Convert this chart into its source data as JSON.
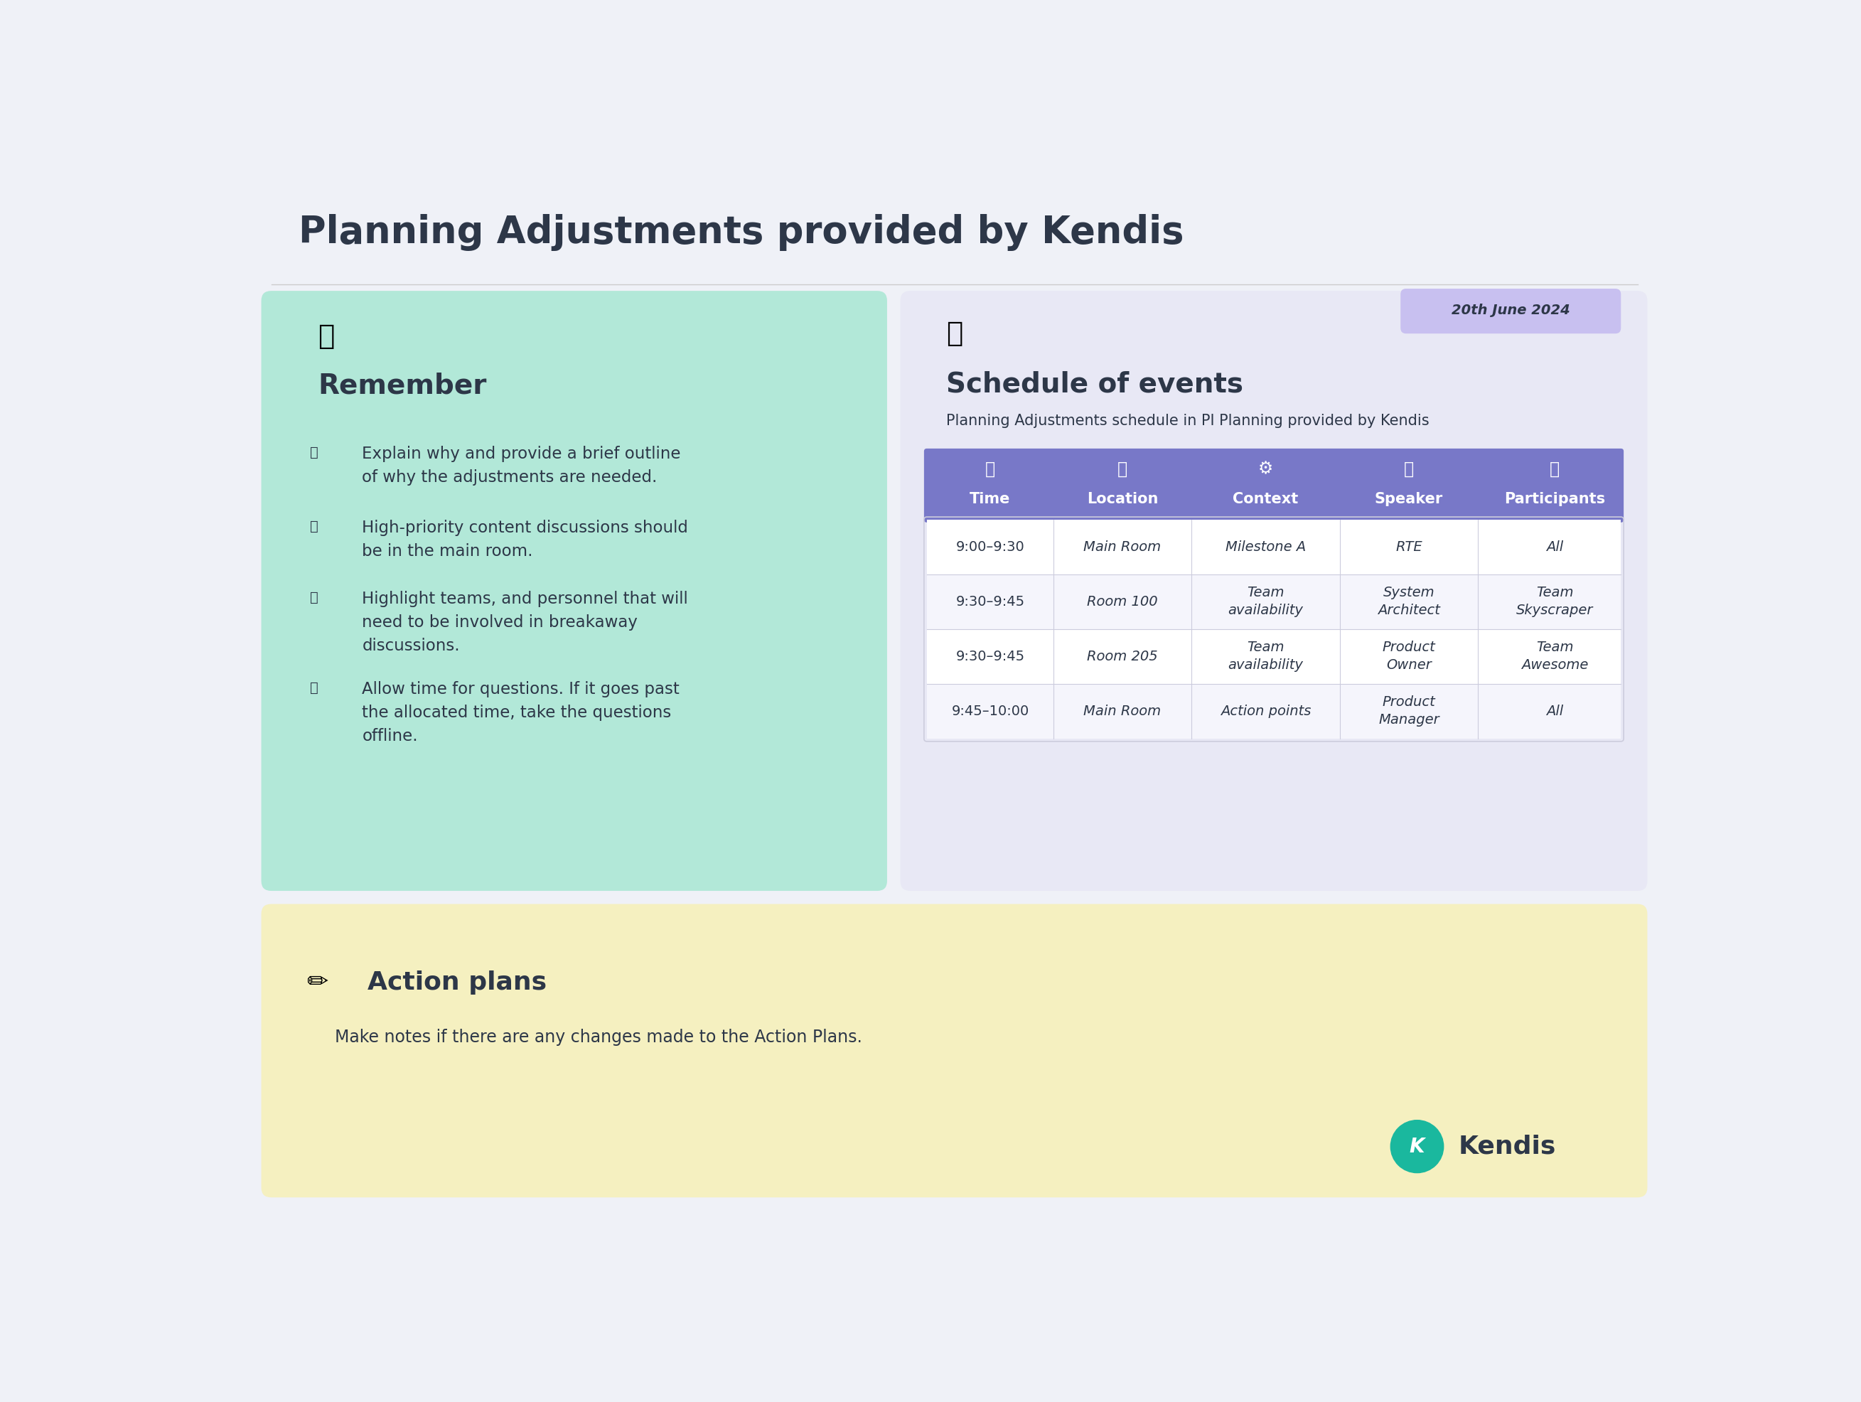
{
  "title": "Planning Adjustments provided by Kendis",
  "bg_color": "#eff1f7",
  "title_color": "#2d3748",
  "left_box_color": "#b2e8d8",
  "right_box_color": "#e8e8f5",
  "bottom_box_color": "#f5f0c0",
  "remember_title": "Remember",
  "remember_bullets": [
    "Explain why and provide a brief outline\nof why the adjustments are needed.",
    "High-priority content discussions should\nbe in the main room.",
    "Highlight teams, and personnel that will\nneed to be involved in breakaway\ndiscussions.",
    "Allow time for questions. If it goes past\nthe allocated time, take the questions\noffline."
  ],
  "schedule_title": "Schedule of events",
  "schedule_subtitle": "Planning Adjustments schedule in PI Planning provided by Kendis",
  "date_label": "20th June 2024",
  "date_bg": "#c8c0f0",
  "table_header_bg": "#7878c8",
  "table_header_color": "#ffffff",
  "table_row_bg": "#ffffff",
  "table_alt_row_bg": "#f5f5fc",
  "headers": [
    "Time",
    "Location",
    "Context",
    "Speaker",
    "Participants"
  ],
  "rows": [
    [
      "9:00–9:30",
      "Main Room",
      "Milestone A",
      "RTE",
      "All"
    ],
    [
      "9:30–9:45",
      "Room 100",
      "Team\navailability",
      "System\nArchitect",
      "Team\nSkyscraper"
    ],
    [
      "9:30–9:45",
      "Room 205",
      "Team\navailability",
      "Product\nOwner",
      "Team\nAwesome"
    ],
    [
      "9:45–10:00",
      "Main Room",
      "Action points",
      "Product\nManager",
      "All"
    ]
  ],
  "action_title": "Action plans",
  "action_text": "Make notes if there are any changes made to the Action Plans.",
  "kendis_text": "Kendis",
  "text_color": "#2d3748",
  "divider_color": "#ccccdd",
  "teal_color": "#1ab89e"
}
